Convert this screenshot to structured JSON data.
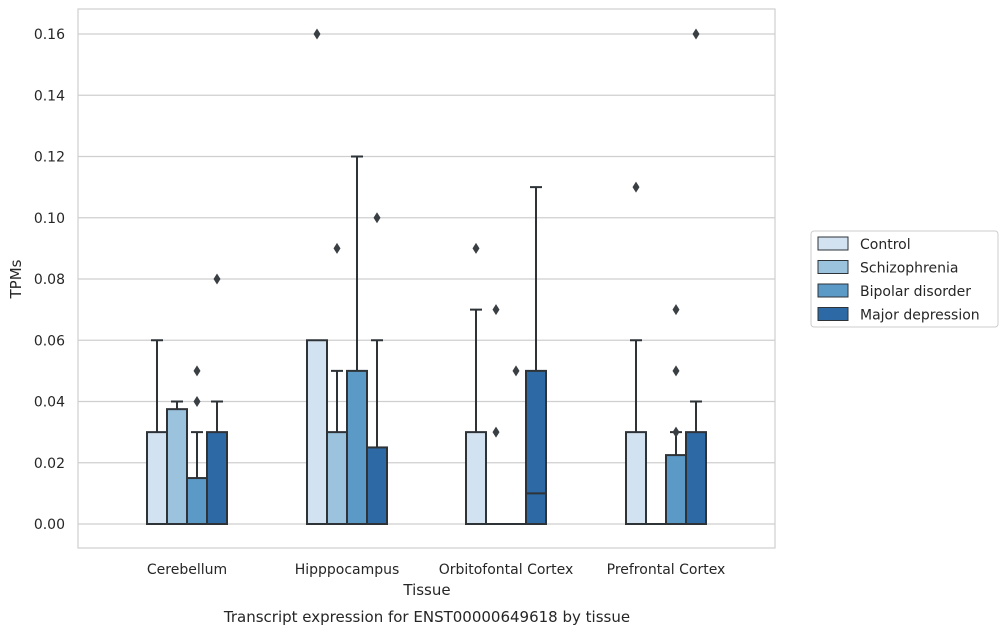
{
  "chart_data": {
    "type": "boxplot",
    "caption": "Transcript expression for ENST00000649618 by tissue",
    "xlabel": "Tissue",
    "ylabel": "TPMs",
    "ylim": [
      -0.008,
      0.168
    ],
    "yticks": [
      0.0,
      0.02,
      0.04,
      0.06,
      0.08,
      0.1,
      0.12,
      0.14,
      0.16
    ],
    "ytick_labels": [
      "0.00",
      "0.02",
      "0.04",
      "0.06",
      "0.08",
      "0.10",
      "0.12",
      "0.14",
      "0.16"
    ],
    "grid": "horizontal",
    "legend_position": "right",
    "categories": [
      "Cerebellum",
      "Hipppocampus",
      "Orbitofontal Cortex",
      "Prefrontal Cortex"
    ],
    "series": [
      {
        "name": "Control",
        "color": "#d3e2f1",
        "boxes": [
          {
            "q1": 0.0,
            "median": 0.0,
            "q3": 0.03,
            "whisker_low": 0.0,
            "whisker_high": 0.06,
            "outliers": []
          },
          {
            "q1": 0.0,
            "median": 0.0,
            "q3": 0.06,
            "whisker_low": 0.0,
            "whisker_high": 0.06,
            "outliers": [
              0.16
            ]
          },
          {
            "q1": 0.0,
            "median": 0.0,
            "q3": 0.03,
            "whisker_low": 0.0,
            "whisker_high": 0.07,
            "outliers": [
              0.09
            ]
          },
          {
            "q1": 0.0,
            "median": 0.0,
            "q3": 0.03,
            "whisker_low": 0.0,
            "whisker_high": 0.06,
            "outliers": [
              0.11
            ]
          }
        ]
      },
      {
        "name": "Schizophrenia",
        "color": "#9bc3de",
        "boxes": [
          {
            "q1": 0.0,
            "median": 0.0,
            "q3": 0.0375,
            "whisker_low": 0.0,
            "whisker_high": 0.04,
            "outliers": []
          },
          {
            "q1": 0.0,
            "median": 0.0,
            "q3": 0.03,
            "whisker_low": 0.0,
            "whisker_high": 0.05,
            "outliers": [
              0.09
            ]
          },
          {
            "q1": 0.0,
            "median": 0.0,
            "q3": 0.0,
            "whisker_low": 0.0,
            "whisker_high": 0.0,
            "outliers": [
              0.03,
              0.07
            ]
          },
          {
            "q1": 0.0,
            "median": 0.0,
            "q3": 0.0,
            "whisker_low": 0.0,
            "whisker_high": 0.0,
            "outliers": []
          }
        ]
      },
      {
        "name": "Bipolar disorder",
        "color": "#5b99c7",
        "boxes": [
          {
            "q1": 0.0,
            "median": 0.0,
            "q3": 0.015,
            "whisker_low": 0.0,
            "whisker_high": 0.03,
            "outliers": [
              0.04,
              0.05
            ]
          },
          {
            "q1": 0.0,
            "median": 0.0,
            "q3": 0.05,
            "whisker_low": 0.0,
            "whisker_high": 0.12,
            "outliers": []
          },
          {
            "q1": 0.0,
            "median": 0.0,
            "q3": 0.0,
            "whisker_low": 0.0,
            "whisker_high": 0.0,
            "outliers": [
              0.05
            ]
          },
          {
            "q1": 0.0,
            "median": 0.0,
            "q3": 0.0225,
            "whisker_low": 0.0,
            "whisker_high": 0.03,
            "outliers": [
              0.03,
              0.05,
              0.07
            ]
          }
        ]
      },
      {
        "name": "Major depression",
        "color": "#2d6aa5",
        "boxes": [
          {
            "q1": 0.0,
            "median": 0.0,
            "q3": 0.03,
            "whisker_low": 0.0,
            "whisker_high": 0.04,
            "outliers": [
              0.08
            ]
          },
          {
            "q1": 0.0,
            "median": 0.0,
            "q3": 0.025,
            "whisker_low": 0.0,
            "whisker_high": 0.06,
            "outliers": [
              0.1
            ]
          },
          {
            "q1": 0.0,
            "median": 0.01,
            "q3": 0.05,
            "whisker_low": 0.0,
            "whisker_high": 0.11,
            "outliers": []
          },
          {
            "q1": 0.0,
            "median": 0.0,
            "q3": 0.03,
            "whisker_low": 0.0,
            "whisker_high": 0.04,
            "outliers": [
              0.16
            ]
          }
        ]
      }
    ]
  }
}
